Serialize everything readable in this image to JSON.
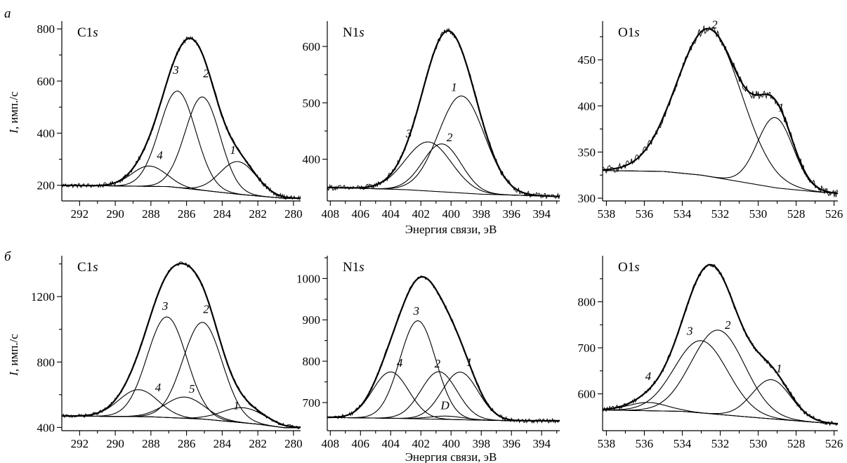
{
  "figure": {
    "row_labels": [
      "а",
      "б"
    ],
    "shared_xlabel": "Энергия связи, эВ",
    "ylabel_italic": "I",
    "ylabel_rest": ", имп./с"
  },
  "chart_data": [
    {
      "type": "line",
      "row": "а",
      "title_main": "C1",
      "title_sub": "s",
      "xlim": [
        293,
        279.6
      ],
      "ylim": [
        140,
        830
      ],
      "xticks": [
        292,
        290,
        288,
        286,
        284,
        282,
        280
      ],
      "yticks": [
        200,
        400,
        600,
        800
      ],
      "x_reversed": true,
      "baseline": {
        "x": [
          293,
          287,
          283,
          280.5
        ],
        "y": [
          200,
          195,
          165,
          150
        ]
      },
      "components": [
        {
          "name": "1",
          "center": 283.1,
          "height": 125,
          "fwhm": 2.4
        },
        {
          "name": "2",
          "center": 285.1,
          "height": 358,
          "fwhm": 2.3
        },
        {
          "name": "3",
          "center": 286.5,
          "height": 370,
          "fwhm": 2.4
        },
        {
          "name": "4",
          "center": 288.1,
          "height": 78,
          "fwhm": 2.3
        }
      ],
      "component_labels": [
        {
          "text": "1",
          "x": 283.4,
          "y": 320
        },
        {
          "text": "2",
          "x": 284.9,
          "y": 615
        },
        {
          "text": "3",
          "x": 286.6,
          "y": 628
        },
        {
          "text": "4",
          "x": 287.5,
          "y": 300
        }
      ],
      "noise_amp": 9
    },
    {
      "type": "line",
      "row": "а",
      "title_main": "N1",
      "title_sub": "s",
      "xlim": [
        408.2,
        392.8
      ],
      "ylim": [
        326,
        645
      ],
      "xticks": [
        408,
        406,
        404,
        402,
        400,
        398,
        396,
        394
      ],
      "yticks": [
        400,
        500,
        600
      ],
      "x_reversed": true,
      "baseline": {
        "x": [
          408.2,
          403,
          398,
          393
        ],
        "y": [
          350,
          346,
          338,
          334
        ]
      },
      "components": [
        {
          "name": "1",
          "center": 399.3,
          "height": 172,
          "fwhm": 3.6
        },
        {
          "name": "2",
          "center": 400.6,
          "height": 85,
          "fwhm": 3.0
        },
        {
          "name": "3",
          "center": 401.5,
          "height": 87,
          "fwhm": 3.6
        }
      ],
      "component_labels": [
        {
          "text": "1",
          "x": 399.8,
          "y": 521
        },
        {
          "text": "2",
          "x": 400.1,
          "y": 432
        },
        {
          "text": "3",
          "x": 402.8,
          "y": 439
        }
      ],
      "noise_amp": 5
    },
    {
      "type": "line",
      "row": "а",
      "title_main": "O1",
      "title_sub": "s",
      "xlim": [
        538.2,
        525.8
      ],
      "ylim": [
        297,
        492
      ],
      "xticks": [
        538,
        536,
        534,
        532,
        530,
        528,
        526
      ],
      "yticks": [
        300,
        350,
        400,
        450
      ],
      "x_reversed": true,
      "baseline": {
        "x": [
          538.2,
          535,
          533,
          531,
          529,
          527,
          525.8
        ],
        "y": [
          330,
          329,
          325,
          318,
          311,
          307,
          305
        ]
      },
      "components": [
        {
          "name": "1",
          "center": 529.1,
          "height": 76,
          "fwhm": 2.2
        },
        {
          "name": "2",
          "center": 532.6,
          "height": 160,
          "fwhm": 4.0
        }
      ],
      "component_labels": [
        {
          "text": "1",
          "x": 528.8,
          "y": 394
        },
        {
          "text": "2",
          "x": 532.3,
          "y": 484
        }
      ],
      "noise_amp": 4.5
    },
    {
      "type": "line",
      "row": "б",
      "title_main": "C1",
      "title_sub": "s",
      "xlim": [
        293,
        279.6
      ],
      "ylim": [
        380,
        1450
      ],
      "xticks": [
        292,
        290,
        288,
        286,
        284,
        282,
        280
      ],
      "yticks": [
        400,
        800,
        1200
      ],
      "x_reversed": true,
      "baseline": {
        "x": [
          293,
          288,
          285,
          282,
          280.5
        ],
        "y": [
          470,
          465,
          450,
          420,
          398
        ]
      },
      "components": [
        {
          "name": "1",
          "center": 282.8,
          "height": 92,
          "fwhm": 2.8
        },
        {
          "name": "2",
          "center": 285.1,
          "height": 592,
          "fwhm": 2.6
        },
        {
          "name": "3",
          "center": 287.1,
          "height": 615,
          "fwhm": 2.6
        },
        {
          "name": "4",
          "center": 288.7,
          "height": 165,
          "fwhm": 2.6
        },
        {
          "name": "5",
          "center": 286.1,
          "height": 130,
          "fwhm": 2.6
        }
      ],
      "component_labels": [
        {
          "text": "1",
          "x": 283.2,
          "y": 512
        },
        {
          "text": "2",
          "x": 284.9,
          "y": 1100
        },
        {
          "text": "3",
          "x": 287.2,
          "y": 1120
        },
        {
          "text": "4",
          "x": 287.6,
          "y": 620
        },
        {
          "text": "5",
          "x": 285.7,
          "y": 612
        }
      ],
      "noise_amp": 11
    },
    {
      "type": "line",
      "row": "б",
      "title_main": "N1",
      "title_sub": "s",
      "xlim": [
        408.2,
        392.8
      ],
      "ylim": [
        632,
        1055
      ],
      "xticks": [
        408,
        406,
        404,
        402,
        400,
        398,
        396,
        394
      ],
      "yticks": [
        700,
        800,
        900,
        1000
      ],
      "x_reversed": true,
      "baseline": {
        "x": [
          408.2,
          404,
          400,
          396
        ],
        "y": [
          664,
          662,
          659,
          656
        ]
      },
      "components": [
        {
          "name": "1",
          "center": 399.4,
          "height": 115,
          "fwhm": 2.8
        },
        {
          "name": "2",
          "center": 400.8,
          "height": 115,
          "fwhm": 2.8
        },
        {
          "name": "3",
          "center": 402.2,
          "height": 237,
          "fwhm": 2.8
        },
        {
          "name": "4",
          "center": 404.0,
          "height": 112,
          "fwhm": 2.8
        },
        {
          "name": "D",
          "center": 400.3,
          "height": 8,
          "fwhm": 2.6
        }
      ],
      "component_labels": [
        {
          "text": "1",
          "x": 398.8,
          "y": 788
        },
        {
          "text": "2",
          "x": 400.9,
          "y": 785
        },
        {
          "text": "3",
          "x": 402.3,
          "y": 912
        },
        {
          "text": "4",
          "x": 403.4,
          "y": 787
        },
        {
          "text": "D",
          "x": 400.4,
          "y": 684
        }
      ],
      "noise_amp": 5
    },
    {
      "type": "line",
      "row": "б",
      "title_main": "O1",
      "title_sub": "s",
      "xlim": [
        538.2,
        525.8
      ],
      "ylim": [
        520,
        900
      ],
      "xticks": [
        538,
        536,
        534,
        532,
        530,
        528,
        526
      ],
      "yticks": [
        600,
        700,
        800
      ],
      "x_reversed": true,
      "baseline": {
        "x": [
          538.2,
          534,
          530,
          526
        ],
        "y": [
          565,
          562,
          548,
          535
        ]
      },
      "components": [
        {
          "name": "1",
          "center": 529.3,
          "height": 85,
          "fwhm": 2.4
        },
        {
          "name": "2",
          "center": 532.1,
          "height": 183,
          "fwhm": 3.3
        },
        {
          "name": "3",
          "center": 533.0,
          "height": 157,
          "fwhm": 3.3
        },
        {
          "name": "4",
          "center": 535.8,
          "height": 18,
          "fwhm": 2.4
        }
      ],
      "component_labels": [
        {
          "text": "1",
          "x": 528.9,
          "y": 647
        },
        {
          "text": "2",
          "x": 531.6,
          "y": 741
        },
        {
          "text": "3",
          "x": 533.6,
          "y": 728
        },
        {
          "text": "4",
          "x": 535.8,
          "y": 630
        }
      ],
      "noise_amp": 5
    }
  ]
}
